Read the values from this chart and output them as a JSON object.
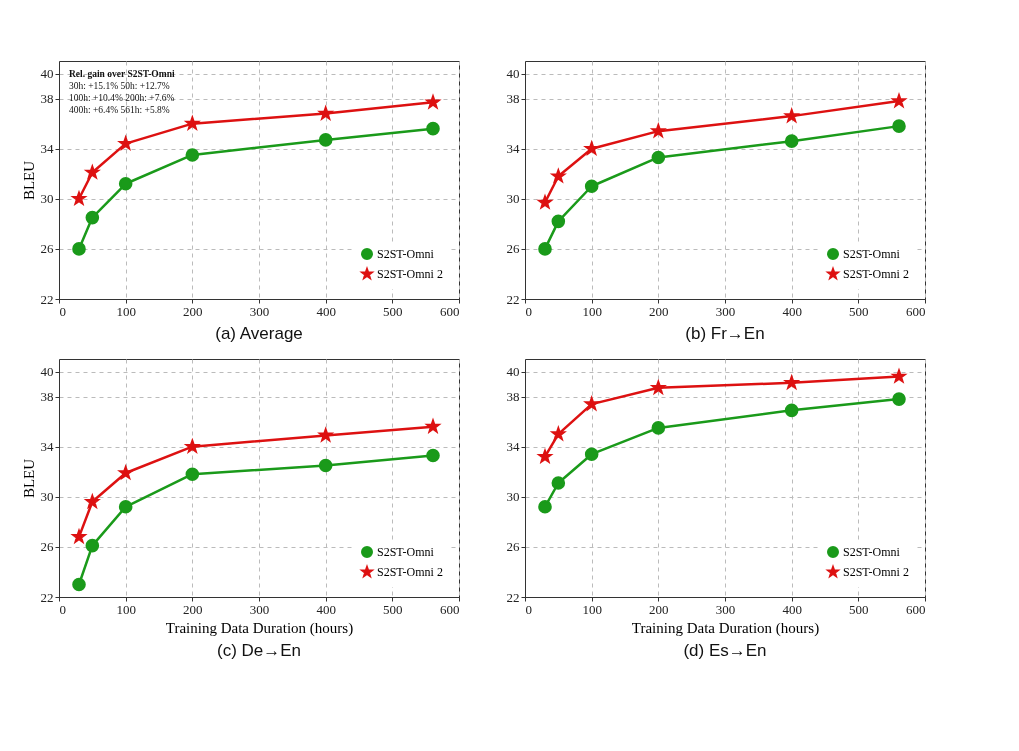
{
  "chart_data": [
    {
      "type": "line",
      "title": "(a) Average",
      "ylabel": "BLEU",
      "x": [
        30,
        50,
        100,
        200,
        400,
        561
      ],
      "series": [
        {
          "name": "S2ST-Omni",
          "color": "#1a9a1a",
          "marker": "circle",
          "values": [
            26.0,
            28.5,
            31.2,
            33.5,
            34.7,
            35.6
          ]
        },
        {
          "name": "S2ST-Omni 2",
          "color": "#dd1111",
          "marker": "star",
          "values": [
            30.0,
            32.1,
            34.4,
            36.0,
            36.8,
            37.7
          ]
        }
      ],
      "xlim": [
        0,
        600
      ],
      "ylim": [
        22,
        41
      ],
      "xticks": [
        0,
        100,
        200,
        300,
        400,
        500,
        600
      ],
      "yticks": [
        22,
        26,
        30,
        34,
        38,
        40
      ],
      "grid": true,
      "legend": "bottom right",
      "annotations": [
        "Rel. gain over S2ST-Omni",
        "30h: +15.1%    50h: +12.7%",
        "100h: +10.4%    200h: +7.6%",
        "400h: +6.4%    561h: +5.8%"
      ]
    },
    {
      "type": "line",
      "title": "(b) Fr→En",
      "x": [
        30,
        50,
        100,
        200,
        400,
        561
      ],
      "series": [
        {
          "name": "S2ST-Omni",
          "color": "#1a9a1a",
          "marker": "circle",
          "values": [
            26.0,
            28.2,
            31.0,
            33.3,
            34.6,
            35.8
          ]
        },
        {
          "name": "S2ST-Omni 2",
          "color": "#dd1111",
          "marker": "star",
          "values": [
            29.7,
            31.8,
            34.0,
            35.4,
            36.6,
            37.8
          ]
        }
      ],
      "xlim": [
        0,
        600
      ],
      "ylim": [
        22,
        41
      ],
      "xticks": [
        0,
        100,
        200,
        300,
        400,
        500,
        600
      ],
      "yticks": [
        22,
        26,
        30,
        34,
        38,
        40
      ],
      "grid": true,
      "legend": "bottom right"
    },
    {
      "type": "line",
      "title": "(c) De→En",
      "xlabel": "Training Data Duration (hours)",
      "ylabel": "BLEU",
      "x": [
        30,
        50,
        100,
        200,
        400,
        561
      ],
      "series": [
        {
          "name": "S2ST-Omni",
          "color": "#1a9a1a",
          "marker": "circle",
          "values": [
            23.0,
            26.1,
            29.2,
            31.8,
            32.5,
            33.3
          ]
        },
        {
          "name": "S2ST-Omni 2",
          "color": "#dd1111",
          "marker": "star",
          "values": [
            26.8,
            29.6,
            31.9,
            34.0,
            34.9,
            35.6
          ]
        }
      ],
      "xlim": [
        0,
        600
      ],
      "ylim": [
        22,
        41
      ],
      "xticks": [
        0,
        100,
        200,
        300,
        400,
        500,
        600
      ],
      "yticks": [
        22,
        26,
        30,
        34,
        38,
        40
      ],
      "grid": true,
      "legend": "bottom right"
    },
    {
      "type": "line",
      "title": "(d) Es→En",
      "xlabel": "Training Data Duration (hours)",
      "x": [
        30,
        50,
        100,
        200,
        400,
        561
      ],
      "series": [
        {
          "name": "S2ST-Omni",
          "color": "#1a9a1a",
          "marker": "circle",
          "values": [
            29.2,
            31.1,
            33.4,
            35.5,
            36.9,
            37.8
          ]
        },
        {
          "name": "S2ST-Omni 2",
          "color": "#dd1111",
          "marker": "star",
          "values": [
            33.2,
            35.0,
            37.4,
            38.7,
            39.1,
            39.6
          ]
        }
      ],
      "xlim": [
        0,
        600
      ],
      "ylim": [
        22,
        41
      ],
      "xticks": [
        0,
        100,
        200,
        300,
        400,
        500,
        600
      ],
      "yticks": [
        22,
        26,
        30,
        34,
        38,
        40
      ],
      "grid": true,
      "legend": "bottom right"
    }
  ]
}
